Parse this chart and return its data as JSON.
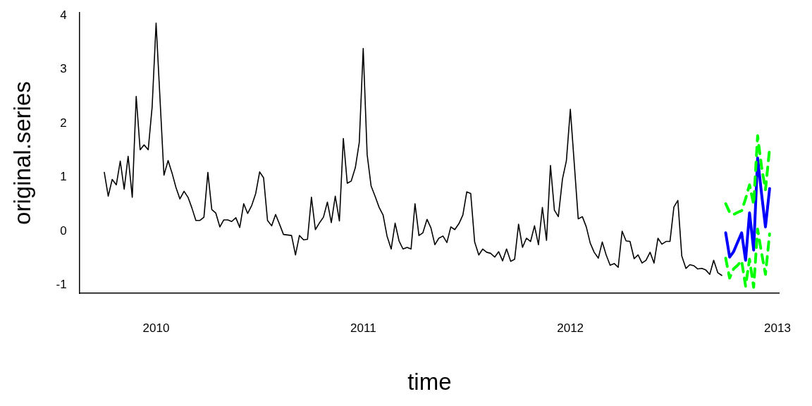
{
  "chart_data": {
    "type": "line",
    "xlabel": "time",
    "ylabel": "original.series",
    "xlim": [
      2009.63,
      2013.01
    ],
    "ylim": [
      -1.15,
      4.05
    ],
    "xticks": [
      2010,
      2011,
      2012,
      2013
    ],
    "yticks": [
      -1,
      0,
      1,
      2,
      3,
      4
    ],
    "legend": false,
    "series": [
      {
        "color": "#000000",
        "x": [
          2009.75,
          2009.769,
          2009.788,
          2009.808,
          2009.827,
          2009.846,
          2009.865,
          2009.885,
          2009.904,
          2009.923,
          2009.942,
          2009.962,
          2009.981,
          2010,
          2010.019,
          2010.038,
          2010.058,
          2010.077,
          2010.096,
          2010.115,
          2010.135,
          2010.154,
          2010.173,
          2010.192,
          2010.212,
          2010.231,
          2010.25,
          2010.269,
          2010.288,
          2010.308,
          2010.327,
          2010.346,
          2010.365,
          2010.385,
          2010.404,
          2010.423,
          2010.442,
          2010.462,
          2010.481,
          2010.5,
          2010.519,
          2010.538,
          2010.558,
          2010.577,
          2010.596,
          2010.615,
          2010.635,
          2010.654,
          2010.673,
          2010.692,
          2010.712,
          2010.731,
          2010.75,
          2010.769,
          2010.788,
          2010.808,
          2010.827,
          2010.846,
          2010.865,
          2010.885,
          2010.904,
          2010.923,
          2010.942,
          2010.962,
          2010.981,
          2011,
          2011.019,
          2011.038,
          2011.058,
          2011.077,
          2011.096,
          2011.115,
          2011.135,
          2011.154,
          2011.173,
          2011.192,
          2011.212,
          2011.231,
          2011.25,
          2011.269,
          2011.288,
          2011.308,
          2011.327,
          2011.346,
          2011.365,
          2011.385,
          2011.404,
          2011.423,
          2011.442,
          2011.462,
          2011.481,
          2011.5,
          2011.519,
          2011.538,
          2011.558,
          2011.577,
          2011.596,
          2011.615,
          2011.635,
          2011.654,
          2011.673,
          2011.692,
          2011.712,
          2011.731,
          2011.75,
          2011.769,
          2011.788,
          2011.808,
          2011.827,
          2011.846,
          2011.865,
          2011.885,
          2011.904,
          2011.923,
          2011.942,
          2011.962,
          2011.981,
          2012,
          2012.019,
          2012.038,
          2012.058,
          2012.077,
          2012.096,
          2012.115,
          2012.135,
          2012.154,
          2012.173,
          2012.192,
          2012.212,
          2012.231,
          2012.25,
          2012.269,
          2012.288,
          2012.308,
          2012.327,
          2012.346,
          2012.365,
          2012.385,
          2012.404,
          2012.423,
          2012.442,
          2012.462,
          2012.481,
          2012.5,
          2012.519,
          2012.538,
          2012.558,
          2012.577,
          2012.596,
          2012.615,
          2012.635,
          2012.654,
          2012.673,
          2012.692,
          2012.712,
          2012.731
        ],
        "values": [
          1.09,
          0.65,
          0.96,
          0.86,
          1.3,
          0.78,
          1.39,
          0.63,
          2.5,
          1.51,
          1.6,
          1.51,
          2.31,
          3.86,
          2.45,
          1.04,
          1.31,
          1.08,
          0.81,
          0.6,
          0.74,
          0.63,
          0.43,
          0.2,
          0.2,
          0.26,
          1.09,
          0.4,
          0.34,
          0.08,
          0.21,
          0.21,
          0.18,
          0.25,
          0.07,
          0.51,
          0.33,
          0.48,
          0.7,
          1.1,
          0.99,
          0.2,
          0.1,
          0.31,
          0.13,
          -0.06,
          -0.07,
          -0.08,
          -0.44,
          -0.08,
          -0.16,
          -0.15,
          0.63,
          0.03,
          0.15,
          0.26,
          0.54,
          0.16,
          0.65,
          0.19,
          1.72,
          0.89,
          0.93,
          1.18,
          1.65,
          3.39,
          1.42,
          0.84,
          0.64,
          0.44,
          0.3,
          -0.09,
          -0.33,
          0.15,
          -0.18,
          -0.33,
          -0.3,
          -0.33,
          0.51,
          -0.08,
          -0.03,
          0.22,
          0.06,
          -0.25,
          -0.13,
          -0.09,
          -0.21,
          0.08,
          0.03,
          0.14,
          0.3,
          0.73,
          0.7,
          -0.2,
          -0.44,
          -0.33,
          -0.39,
          -0.41,
          -0.48,
          -0.38,
          -0.55,
          -0.33,
          -0.56,
          -0.52,
          0.13,
          -0.3,
          -0.13,
          -0.19,
          0.1,
          -0.25,
          0.44,
          -0.17,
          1.22,
          0.39,
          0.27,
          0.97,
          1.31,
          2.26,
          1.25,
          0.23,
          0.27,
          0.08,
          -0.22,
          -0.39,
          -0.5,
          -0.2,
          -0.44,
          -0.63,
          -0.6,
          -0.67,
          0,
          -0.18,
          -0.19,
          -0.51,
          -0.44,
          -0.59,
          -0.54,
          -0.39,
          -0.59,
          -0.13,
          -0.24,
          -0.19,
          -0.19,
          0.45,
          0.57,
          -0.46,
          -0.69,
          -0.62,
          -0.64,
          -0.7,
          -0.69,
          -0.72,
          -0.8,
          -0.54,
          -0.77,
          -0.82
        ]
      },
      {
        "color": "#00ff00",
        "line_style": "dashed",
        "x": [
          2012.75,
          2012.769,
          2012.788,
          2012.808,
          2012.827,
          2012.846,
          2012.865,
          2012.885,
          2012.904,
          2012.923,
          2012.942,
          2012.962
        ],
        "values": [
          0.51,
          0.35,
          0.31,
          0.35,
          0.38,
          0.6,
          0.86,
          0.5,
          1.77,
          1.2,
          0.77,
          1.53
        ]
      },
      {
        "color": "#00ff00",
        "line_style": "dashed",
        "x": [
          2012.75,
          2012.769,
          2012.788,
          2012.808,
          2012.827,
          2012.846,
          2012.865,
          2012.885,
          2012.904,
          2012.923,
          2012.942,
          2012.962
        ],
        "values": [
          -0.5,
          -0.87,
          -0.7,
          -0.63,
          -0.55,
          -1.02,
          -0.52,
          -1.04,
          0.04,
          -0.4,
          -0.8,
          -0.05
        ]
      },
      {
        "color": "#0000ff",
        "x": [
          2012.75,
          2012.769,
          2012.788,
          2012.808,
          2012.827,
          2012.846,
          2012.865,
          2012.885,
          2012.904,
          2012.923,
          2012.942,
          2012.962
        ],
        "values": [
          -0.03,
          -0.48,
          -0.38,
          -0.2,
          -0.03,
          -0.54,
          0.34,
          -0.35,
          1.36,
          0.7,
          0.08,
          0.79
        ]
      }
    ]
  }
}
